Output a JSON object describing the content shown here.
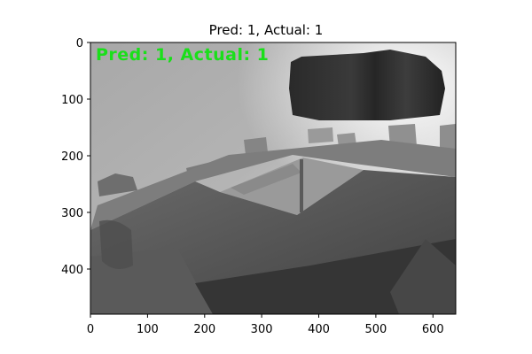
{
  "figure": {
    "title": "Pred: 1, Actual: 1",
    "overlay_text": "Pred:  1,  Actual:  1",
    "overlay_color": "#1adf1a"
  },
  "axes": {
    "x_ticks": [
      0,
      100,
      200,
      300,
      400,
      500,
      600
    ],
    "y_ticks": [
      0,
      100,
      200,
      300,
      400
    ],
    "x_range": [
      0,
      640
    ],
    "y_range": [
      0,
      480
    ]
  }
}
